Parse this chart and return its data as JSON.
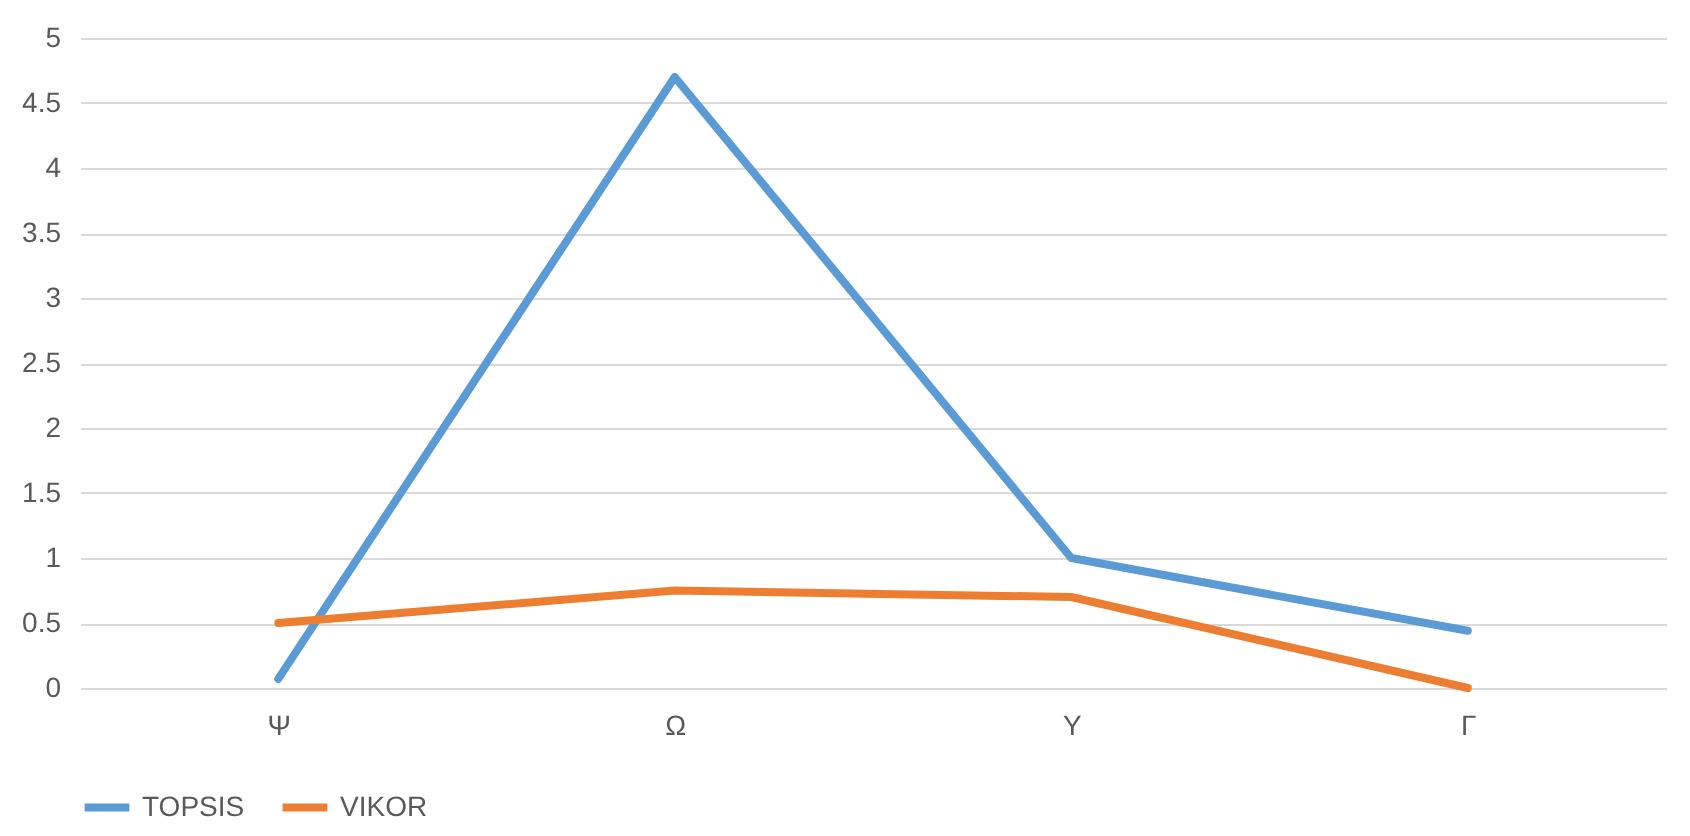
{
  "chart_data": {
    "type": "line",
    "categories": [
      "Ψ",
      "Ω",
      "Υ",
      "Γ"
    ],
    "series": [
      {
        "name": "TOPSIS",
        "color": "#5b9bd5",
        "values": [
          0.07,
          4.7,
          1.0,
          0.44
        ]
      },
      {
        "name": "VIKOR",
        "color": "#ed7d31",
        "values": [
          0.5,
          0.75,
          0.7,
          0.0
        ]
      }
    ],
    "ylim": [
      0,
      5
    ],
    "yticks": [
      0,
      0.5,
      1,
      1.5,
      2,
      2.5,
      3,
      3.5,
      4,
      4.5,
      5
    ],
    "grid": "y",
    "legend": "bottom",
    "marker": "none",
    "line_style": "solid"
  }
}
